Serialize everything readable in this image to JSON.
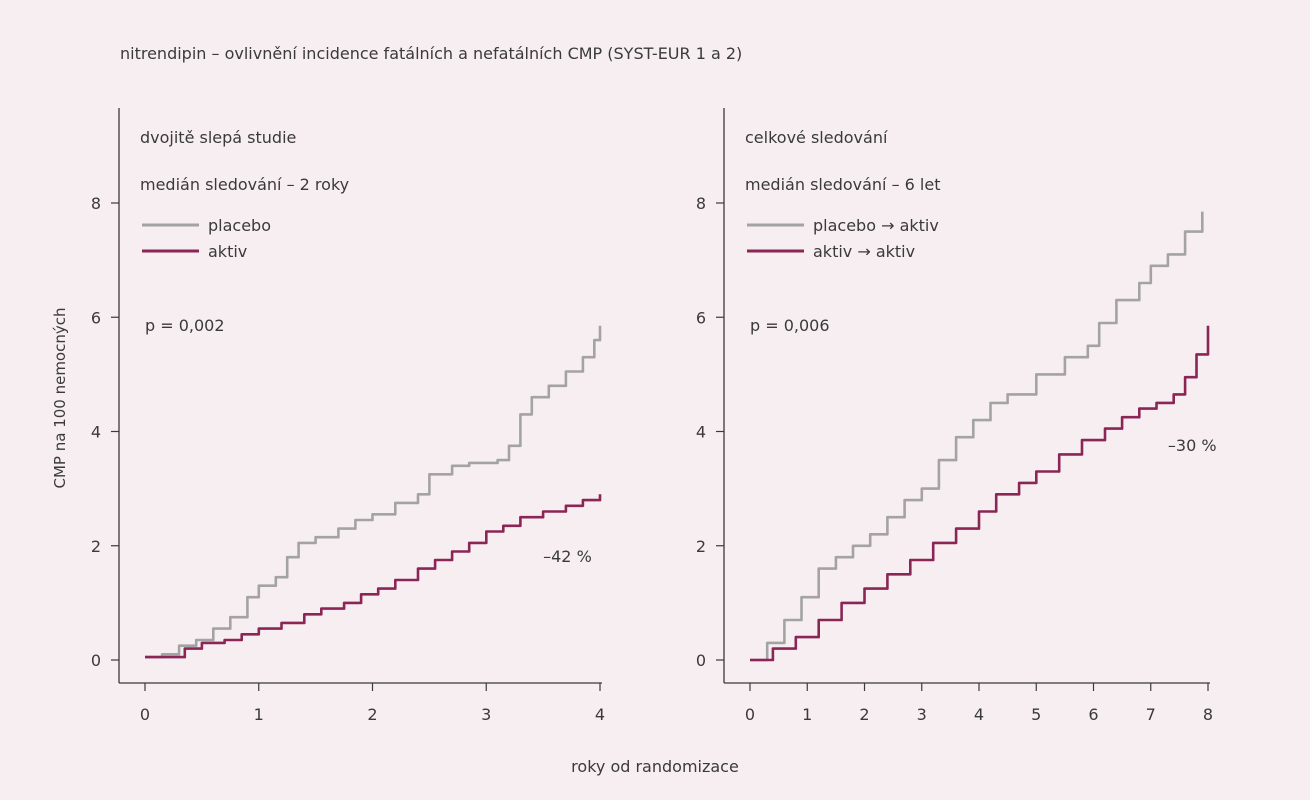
{
  "figure": {
    "title": "nitrendipin – ovlivnění incidence fatálních a nefatálních CMP (SYST-EUR 1 a 2)",
    "xlabel": "roky od randomizace",
    "ylabel": "CMP na 100 nemocných"
  },
  "colors": {
    "placebo": "#a3a3a3",
    "aktiv": "#8b2555",
    "axis": "#3a3a3a",
    "background": "#f7eef1"
  },
  "chart_data": [
    {
      "type": "line",
      "panel_title": "dvojitě slepá studie",
      "subtitle": "medián sledování – 2 roky",
      "xlim": [
        0,
        4
      ],
      "ylim": [
        0,
        8
      ],
      "xticks": [
        0,
        1,
        2,
        3,
        4
      ],
      "yticks": [
        0,
        2,
        4,
        6,
        8
      ],
      "legend_position": "top-left",
      "p_value": "p = 0,002",
      "reduction_label": "–42 %",
      "series": [
        {
          "name": "placebo",
          "color": "#a3a3a3",
          "points": [
            [
              0,
              0.05
            ],
            [
              0.15,
              0.1
            ],
            [
              0.3,
              0.25
            ],
            [
              0.45,
              0.35
            ],
            [
              0.6,
              0.55
            ],
            [
              0.75,
              0.75
            ],
            [
              0.9,
              1.1
            ],
            [
              1.0,
              1.3
            ],
            [
              1.15,
              1.45
            ],
            [
              1.25,
              1.8
            ],
            [
              1.35,
              2.05
            ],
            [
              1.5,
              2.15
            ],
            [
              1.7,
              2.3
            ],
            [
              1.85,
              2.45
            ],
            [
              2.0,
              2.55
            ],
            [
              2.2,
              2.75
            ],
            [
              2.4,
              2.9
            ],
            [
              2.5,
              3.25
            ],
            [
              2.7,
              3.4
            ],
            [
              2.85,
              3.45
            ],
            [
              3.1,
              3.5
            ],
            [
              3.2,
              3.75
            ],
            [
              3.3,
              4.3
            ],
            [
              3.4,
              4.6
            ],
            [
              3.55,
              4.8
            ],
            [
              3.7,
              5.05
            ],
            [
              3.85,
              5.3
            ],
            [
              3.95,
              5.6
            ],
            [
              4.0,
              5.85
            ]
          ]
        },
        {
          "name": "aktiv",
          "color": "#8b2555",
          "points": [
            [
              0,
              0.05
            ],
            [
              0.2,
              0.05
            ],
            [
              0.35,
              0.2
            ],
            [
              0.5,
              0.3
            ],
            [
              0.7,
              0.35
            ],
            [
              0.85,
              0.45
            ],
            [
              1.0,
              0.55
            ],
            [
              1.2,
              0.65
            ],
            [
              1.4,
              0.8
            ],
            [
              1.55,
              0.9
            ],
            [
              1.75,
              1.0
            ],
            [
              1.9,
              1.15
            ],
            [
              2.05,
              1.25
            ],
            [
              2.2,
              1.4
            ],
            [
              2.4,
              1.6
            ],
            [
              2.55,
              1.75
            ],
            [
              2.7,
              1.9
            ],
            [
              2.85,
              2.05
            ],
            [
              3.0,
              2.25
            ],
            [
              3.15,
              2.35
            ],
            [
              3.3,
              2.5
            ],
            [
              3.5,
              2.6
            ],
            [
              3.7,
              2.7
            ],
            [
              3.85,
              2.8
            ],
            [
              4.0,
              2.9
            ]
          ]
        }
      ]
    },
    {
      "type": "line",
      "panel_title": "celkové sledování",
      "subtitle": "medián sledování – 6 let",
      "xlim": [
        0,
        8
      ],
      "ylim": [
        0,
        8
      ],
      "xticks": [
        0,
        1,
        2,
        3,
        4,
        5,
        6,
        7,
        8
      ],
      "yticks": [
        0,
        2,
        4,
        6,
        8
      ],
      "legend_position": "top-left",
      "p_value": "p = 0,006",
      "reduction_label": "–30 %",
      "series": [
        {
          "name": "placebo → aktiv",
          "color": "#a3a3a3",
          "points": [
            [
              0,
              0
            ],
            [
              0.3,
              0.3
            ],
            [
              0.6,
              0.7
            ],
            [
              0.9,
              1.1
            ],
            [
              1.2,
              1.6
            ],
            [
              1.5,
              1.8
            ],
            [
              1.8,
              2.0
            ],
            [
              2.1,
              2.2
            ],
            [
              2.4,
              2.5
            ],
            [
              2.7,
              2.8
            ],
            [
              3.0,
              3.0
            ],
            [
              3.3,
              3.5
            ],
            [
              3.6,
              3.9
            ],
            [
              3.9,
              4.2
            ],
            [
              4.2,
              4.5
            ],
            [
              4.5,
              4.65
            ],
            [
              5.0,
              5.0
            ],
            [
              5.5,
              5.3
            ],
            [
              5.9,
              5.5
            ],
            [
              6.1,
              5.9
            ],
            [
              6.4,
              6.3
            ],
            [
              6.8,
              6.6
            ],
            [
              7.0,
              6.9
            ],
            [
              7.3,
              7.1
            ],
            [
              7.6,
              7.5
            ],
            [
              7.9,
              7.85
            ]
          ]
        },
        {
          "name": "aktiv → aktiv",
          "color": "#8b2555",
          "points": [
            [
              0,
              0
            ],
            [
              0.4,
              0.2
            ],
            [
              0.8,
              0.4
            ],
            [
              1.2,
              0.7
            ],
            [
              1.6,
              1.0
            ],
            [
              2.0,
              1.25
            ],
            [
              2.4,
              1.5
            ],
            [
              2.8,
              1.75
            ],
            [
              3.2,
              2.05
            ],
            [
              3.6,
              2.3
            ],
            [
              4.0,
              2.6
            ],
            [
              4.3,
              2.9
            ],
            [
              4.7,
              3.1
            ],
            [
              5.0,
              3.3
            ],
            [
              5.4,
              3.6
            ],
            [
              5.8,
              3.85
            ],
            [
              6.2,
              4.05
            ],
            [
              6.5,
              4.25
            ],
            [
              6.8,
              4.4
            ],
            [
              7.1,
              4.5
            ],
            [
              7.4,
              4.65
            ],
            [
              7.6,
              4.95
            ],
            [
              7.8,
              5.35
            ],
            [
              8.0,
              5.85
            ]
          ]
        }
      ]
    }
  ]
}
